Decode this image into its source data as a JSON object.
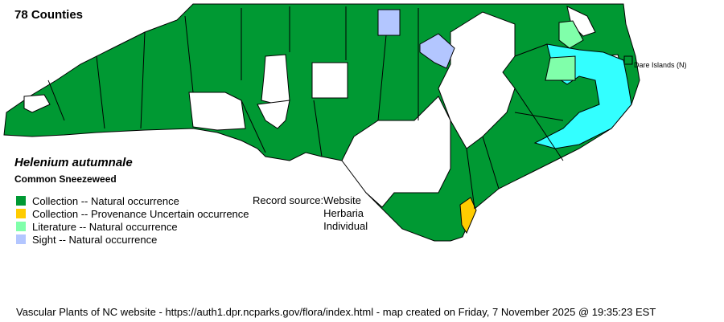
{
  "map": {
    "county_count_label": "78 Counties",
    "scientific_name": "Helenium autumnale",
    "common_name": "Common Sneezeweed",
    "islands_label": "Dare Islands (N)",
    "colors": {
      "collection_natural": "#009933",
      "collection_uncertain": "#ffcc00",
      "literature_natural": "#80ffaa",
      "sight_natural": "#b3c6ff",
      "absent": "#ffffff",
      "water": "#33ffff"
    }
  },
  "legend": [
    {
      "label": "Collection -- Natural occurrence",
      "color": "#009933"
    },
    {
      "label": "Collection -- Provenance Uncertain occurrence",
      "color": "#ffcc00"
    },
    {
      "label": "Literature -- Natural occurrence",
      "color": "#80ffaa"
    },
    {
      "label": "Sight -- Natural occurrence",
      "color": "#b3c6ff"
    }
  ],
  "record_source": {
    "label": "Record source:",
    "values": [
      "Website",
      "Herbaria",
      "Individual"
    ]
  },
  "footer": "Vascular Plants of NC website - https://auth1.dpr.ncparks.gov/flora/index.html - map created on Friday, 7 November 2025 @ 19:35:23 EST"
}
